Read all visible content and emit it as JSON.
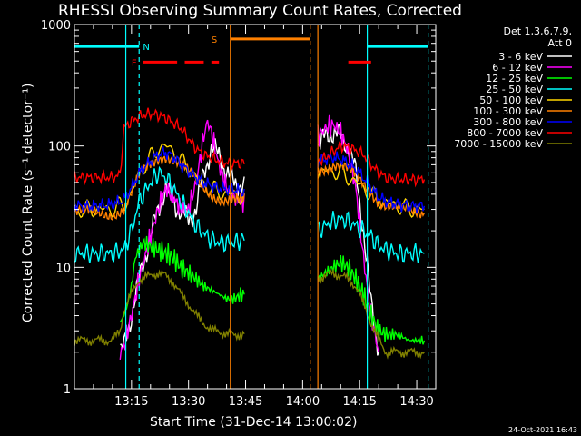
{
  "chart_data": {
    "type": "line",
    "title": "RHESSI Observing Summary Count Rates, Corrected",
    "xlabel": "Start Time (31-Dec-14 13:00:02)",
    "ylabel": "Corrected Count Rate (s⁻¹ detector⁻¹)",
    "x_unit": "minutes after 13:00",
    "xlim": [
      0,
      95
    ],
    "ylim": [
      1,
      1000
    ],
    "y_scale": "log",
    "x_ticks": [
      {
        "x": 15,
        "label": "13:15"
      },
      {
        "x": 30,
        "label": "13:30"
      },
      {
        "x": 45,
        "label": "13:45"
      },
      {
        "x": 60,
        "label": "14:00"
      },
      {
        "x": 75,
        "label": "14:15"
      },
      {
        "x": 90,
        "label": "14:30"
      }
    ],
    "y_ticks": [
      {
        "y": 1,
        "label": "1"
      },
      {
        "y": 10,
        "label": "10"
      },
      {
        "y": 100,
        "label": "100"
      },
      {
        "y": 1000,
        "label": "1000"
      }
    ],
    "legend_header": [
      "Det 1,3,6,7,9,",
      "Att 0"
    ],
    "legend_position": "right",
    "series": [
      {
        "name": "3 - 6 keV",
        "color": "#ffffff",
        "x": [
          12,
          13,
          14,
          15,
          17,
          20,
          22,
          24,
          26,
          28,
          30,
          32,
          34,
          36,
          38,
          40,
          42,
          44,
          45,
          64,
          66,
          68,
          70,
          72,
          74,
          76,
          78,
          80
        ],
        "y": [
          2,
          2.2,
          3,
          4,
          8,
          18,
          30,
          45,
          35,
          28,
          25,
          30,
          60,
          95,
          85,
          60,
          50,
          48,
          45,
          100,
          120,
          130,
          120,
          100,
          60,
          20,
          5,
          2
        ]
      },
      {
        "name": "6 - 12 keV",
        "color": "#ff00ff",
        "x": [
          12,
          13,
          14,
          15,
          17,
          20,
          22,
          24,
          26,
          28,
          30,
          32,
          34,
          35,
          36,
          38,
          40,
          42,
          44,
          45,
          64,
          66,
          68,
          70,
          72,
          74,
          76,
          78,
          80
        ],
        "y": [
          2,
          2.2,
          3,
          4,
          8,
          18,
          30,
          45,
          38,
          30,
          30,
          50,
          120,
          160,
          130,
          70,
          45,
          38,
          35,
          35,
          120,
          140,
          150,
          130,
          90,
          45,
          12,
          4,
          2
        ]
      },
      {
        "name": "12 - 25 keV",
        "color": "#00ff00",
        "x": [
          12,
          13,
          14,
          15,
          16,
          18,
          20,
          22,
          24,
          26,
          28,
          30,
          32,
          34,
          36,
          38,
          40,
          42,
          44,
          45,
          64,
          66,
          68,
          70,
          72,
          74,
          76,
          78,
          80,
          82,
          85,
          88,
          90,
          92
        ],
        "y": [
          3.5,
          4,
          5,
          7,
          12,
          16,
          15,
          14,
          13,
          12,
          10,
          9,
          8,
          7,
          6.5,
          6,
          5.5,
          5.5,
          6,
          6,
          8,
          9,
          10,
          11,
          10,
          8,
          6,
          4,
          3,
          2.8,
          2.8,
          2.5,
          2.5,
          2.5
        ]
      },
      {
        "name": "25 - 50 keV",
        "color": "#00ffff",
        "x": [
          0,
          5,
          10,
          13,
          15,
          17,
          20,
          22,
          24,
          26,
          28,
          30,
          32,
          34,
          36,
          38,
          40,
          42,
          44,
          45,
          64,
          66,
          68,
          70,
          72,
          74,
          76,
          78,
          80,
          82,
          85,
          88,
          90,
          92
        ],
        "y": [
          13,
          13,
          13,
          14,
          20,
          35,
          50,
          60,
          55,
          45,
          35,
          28,
          22,
          19,
          17,
          16,
          16,
          16,
          17,
          17,
          20,
          22,
          24,
          25,
          24,
          22,
          20,
          18,
          15,
          14,
          13,
          13,
          13,
          13
        ]
      },
      {
        "name": "50 - 100 keV",
        "color": "#ffd700",
        "x": [
          0,
          5,
          10,
          13,
          15,
          17,
          20,
          22,
          24,
          26,
          28,
          30,
          32,
          34,
          36,
          38,
          40,
          42,
          44,
          45,
          64,
          66,
          68,
          70,
          72,
          74,
          76,
          78,
          80,
          82,
          85,
          88,
          90,
          92
        ],
        "y": [
          30,
          30,
          30,
          33,
          40,
          60,
          80,
          95,
          100,
          90,
          75,
          65,
          55,
          48,
          44,
          42,
          40,
          40,
          38,
          38,
          60,
          62,
          62,
          60,
          55,
          50,
          45,
          40,
          36,
          34,
          32,
          30,
          30,
          30
        ]
      },
      {
        "name": "100 - 300 keV",
        "color": "#ff8000",
        "x": [
          0,
          5,
          10,
          13,
          15,
          17,
          20,
          22,
          24,
          26,
          28,
          30,
          32,
          34,
          36,
          38,
          40,
          42,
          44,
          45,
          64,
          66,
          68,
          70,
          72,
          74,
          76,
          78,
          80,
          82,
          85,
          88,
          90,
          92
        ],
        "y": [
          28,
          28,
          28,
          30,
          40,
          55,
          70,
          80,
          85,
          80,
          70,
          60,
          50,
          44,
          40,
          38,
          37,
          36,
          35,
          35,
          65,
          68,
          70,
          68,
          62,
          55,
          48,
          42,
          36,
          33,
          30,
          28,
          28,
          28
        ]
      },
      {
        "name": "300 - 800 keV",
        "color": "#0000ff",
        "x": [
          0,
          5,
          10,
          13,
          15,
          17,
          20,
          22,
          24,
          26,
          28,
          30,
          32,
          34,
          36,
          38,
          40,
          42,
          44,
          45,
          64,
          66,
          68,
          70,
          72,
          74,
          76,
          78,
          80,
          82,
          85,
          88,
          90,
          92
        ],
        "y": [
          32,
          32,
          33,
          36,
          45,
          60,
          75,
          85,
          88,
          82,
          70,
          62,
          55,
          50,
          47,
          45,
          44,
          44,
          42,
          42,
          75,
          78,
          80,
          78,
          72,
          65,
          55,
          45,
          38,
          35,
          33,
          32,
          32,
          32
        ]
      },
      {
        "name": "800 - 7000 keV",
        "color": "#ff0000",
        "x": [
          0,
          5,
          10,
          12,
          13,
          15,
          17,
          20,
          22,
          24,
          26,
          28,
          30,
          32,
          34,
          36,
          38,
          40,
          42,
          44,
          45,
          64,
          66,
          68,
          70,
          72,
          74,
          76,
          78,
          80,
          82,
          85,
          88,
          90,
          92
        ],
        "y": [
          55,
          55,
          55,
          58,
          140,
          160,
          175,
          185,
          180,
          170,
          155,
          140,
          115,
          95,
          85,
          80,
          75,
          72,
          72,
          72,
          72,
          75,
          80,
          90,
          100,
          98,
          92,
          85,
          70,
          60,
          55,
          53,
          53,
          53,
          53
        ]
      },
      {
        "name": "7000 - 15000 keV",
        "color": "#808000",
        "x": [
          0,
          5,
          10,
          12,
          13,
          15,
          17,
          20,
          22,
          24,
          26,
          28,
          30,
          32,
          34,
          36,
          38,
          40,
          42,
          44,
          45,
          64,
          66,
          68,
          70,
          72,
          74,
          76,
          78,
          80,
          82,
          85,
          88,
          90,
          92
        ],
        "y": [
          2.5,
          2.5,
          2.5,
          3,
          4.5,
          6,
          8,
          8.5,
          9,
          8.5,
          7.5,
          6,
          5,
          4,
          3.5,
          3,
          3,
          2.8,
          2.8,
          2.8,
          2.8,
          8,
          8.5,
          9,
          8.5,
          8,
          7,
          5,
          3.5,
          2.5,
          2,
          2,
          2,
          2,
          2
        ]
      }
    ],
    "vertical_lines": [
      {
        "x": 13.5,
        "color": "#00ffff",
        "style": "solid"
      },
      {
        "x": 17,
        "color": "#00ffff",
        "style": "dashed"
      },
      {
        "x": 41,
        "color": "#ff8000",
        "style": "solid"
      },
      {
        "x": 62,
        "color": "#ff8000",
        "style": "dashed"
      },
      {
        "x": 64,
        "color": "#ff8000",
        "style": "solid"
      },
      {
        "x": 77,
        "color": "#00ffff",
        "style": "solid"
      },
      {
        "x": 93,
        "color": "#00ffff",
        "style": "dashed"
      }
    ],
    "flag_bars": [
      {
        "label": "N",
        "color": "#00ffff",
        "level": 660,
        "segments": [
          [
            0,
            17
          ],
          [
            77,
            93
          ]
        ]
      },
      {
        "label": "F",
        "color": "#ff0000",
        "level": 490,
        "segments": [
          [
            18,
            27
          ],
          [
            29,
            34
          ],
          [
            36,
            38
          ],
          [
            72,
            78
          ]
        ]
      },
      {
        "label": "S",
        "color": "#ff8000",
        "level": 760,
        "segments": [
          [
            41,
            62
          ]
        ]
      }
    ],
    "bar_labels": {
      "N": "N",
      "F": "F",
      "S": "S"
    },
    "date_stamp": "24-Oct-2021 16:43"
  }
}
